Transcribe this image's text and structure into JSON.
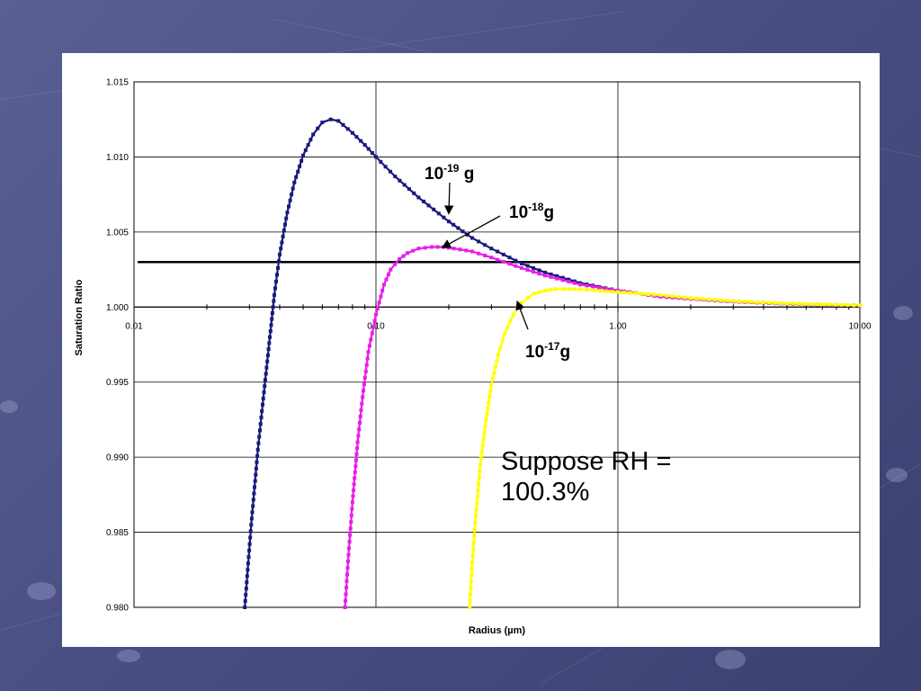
{
  "chart_data": {
    "type": "line",
    "xscale": "log",
    "xlabel": "Radius (µm)",
    "ylabel": "Saturation Ratio",
    "xlim": [
      0.01,
      10
    ],
    "ylim": [
      0.98,
      1.015
    ],
    "x_ticks": [
      0.01,
      0.1,
      1,
      10
    ],
    "x_tick_labels": [
      "0.01",
      "0.10",
      "1.00",
      "10.00"
    ],
    "y_ticks": [
      0.98,
      0.985,
      0.99,
      0.995,
      1.0,
      1.005,
      1.01,
      1.015
    ],
    "y_tick_labels": [
      "0.980",
      "0.985",
      "0.990",
      "0.995",
      "1.000",
      "1.005",
      "1.010",
      "1.015"
    ],
    "grid": true,
    "reference_line": {
      "y": 1.003
    },
    "series": [
      {
        "color": "#1a1a7a",
        "x": [
          0.0287,
          0.0295,
          0.0305,
          0.0315,
          0.0325,
          0.034,
          0.036,
          0.038,
          0.04,
          0.043,
          0.046,
          0.05,
          0.055,
          0.06,
          0.065,
          0.07,
          0.08,
          0.09,
          0.1,
          0.12,
          0.15,
          0.2,
          0.25,
          0.3,
          0.4,
          0.5,
          0.7,
          1.0,
          1.5,
          2.0,
          3.0,
          5.0,
          10.0
        ],
        "y": [
          0.98,
          0.9825,
          0.9855,
          0.988,
          0.9905,
          0.9935,
          0.9972,
          1.0008,
          1.0035,
          1.0063,
          1.0083,
          1.0101,
          1.0115,
          1.0123,
          1.0125,
          1.0124,
          1.0116,
          1.0108,
          1.01,
          1.0087,
          1.0073,
          1.0057,
          1.0046,
          1.0039,
          1.0029,
          1.0023,
          1.0016,
          1.0011,
          1.0007,
          1.00055,
          1.00037,
          1.00022,
          1.00011
        ]
      },
      {
        "color": "#e81ee8",
        "x": [
          0.0745,
          0.077,
          0.08,
          0.084,
          0.088,
          0.093,
          0.1,
          0.108,
          0.115,
          0.125,
          0.135,
          0.15,
          0.17,
          0.19,
          0.21,
          0.25,
          0.3,
          0.4,
          0.5,
          0.7,
          1.0,
          1.5,
          2.0,
          3.0,
          5.0,
          10.0
        ],
        "y": [
          0.98,
          0.9835,
          0.987,
          0.991,
          0.994,
          0.997,
          0.9995,
          1.0015,
          1.0025,
          1.0032,
          1.0036,
          1.0039,
          1.004,
          1.004,
          1.0039,
          1.0037,
          1.0033,
          1.0026,
          1.0021,
          1.0015,
          1.0011,
          1.0007,
          1.00055,
          1.00037,
          1.00022,
          1.00011
        ]
      },
      {
        "color": "#ffff00",
        "x": [
          0.244,
          0.25,
          0.26,
          0.27,
          0.285,
          0.3,
          0.32,
          0.34,
          0.37,
          0.4,
          0.45,
          0.5,
          0.55,
          0.6,
          0.7,
          0.8,
          1.0,
          1.5,
          2.0,
          3.0,
          5.0,
          10.0
        ],
        "y": [
          0.98,
          0.983,
          0.9865,
          0.9895,
          0.9925,
          0.9948,
          0.9968,
          0.9982,
          0.9995,
          1.0003,
          1.0009,
          1.0011,
          1.0012,
          1.0012,
          1.0012,
          1.0011,
          1.001,
          1.0008,
          1.0006,
          1.0004,
          1.00024,
          1.00012
        ]
      }
    ],
    "annotations": [
      {
        "base": "10",
        "exp": "-19",
        "unit": "g",
        "point": [
          0.2,
          1.0063
        ]
      },
      {
        "base": "10",
        "exp": "-18",
        "unit": "g",
        "point": [
          0.19,
          1.004
        ]
      },
      {
        "base": "10",
        "exp": "-17",
        "unit": "g",
        "point": [
          0.385,
          1.0003
        ]
      }
    ]
  },
  "note": {
    "line1": "Suppose RH =",
    "line2": "100.3%"
  }
}
